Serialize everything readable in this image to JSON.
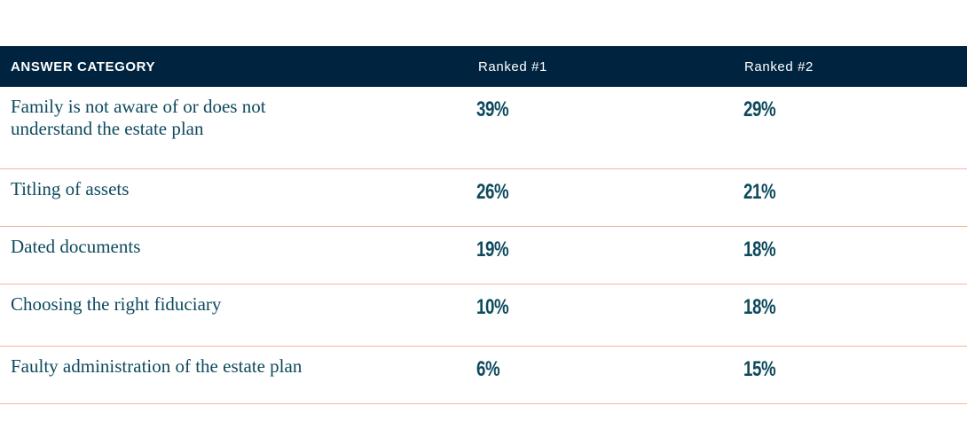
{
  "chart_data": {
    "type": "table",
    "columns": [
      "ANSWER CATEGORY",
      "Ranked #1",
      "Ranked #2"
    ],
    "rows": [
      {
        "category": "Family is not aware of or does not understand the estate plan",
        "ranked1": "39%",
        "ranked2": "29%"
      },
      {
        "category": "Titling of assets",
        "ranked1": "26%",
        "ranked2": "21%"
      },
      {
        "category": "Dated documents",
        "ranked1": "19%",
        "ranked2": "18%"
      },
      {
        "category": "Choosing the right fiduciary",
        "ranked1": "10%",
        "ranked2": "18%"
      },
      {
        "category": "Faulty administration of the estate plan",
        "ranked1": "6%",
        "ranked2": "15%"
      }
    ]
  },
  "colors": {
    "header_bg": "#002440",
    "header_text": "#ffffff",
    "text": "#0d4a5e",
    "divider": "#f2b79d"
  }
}
